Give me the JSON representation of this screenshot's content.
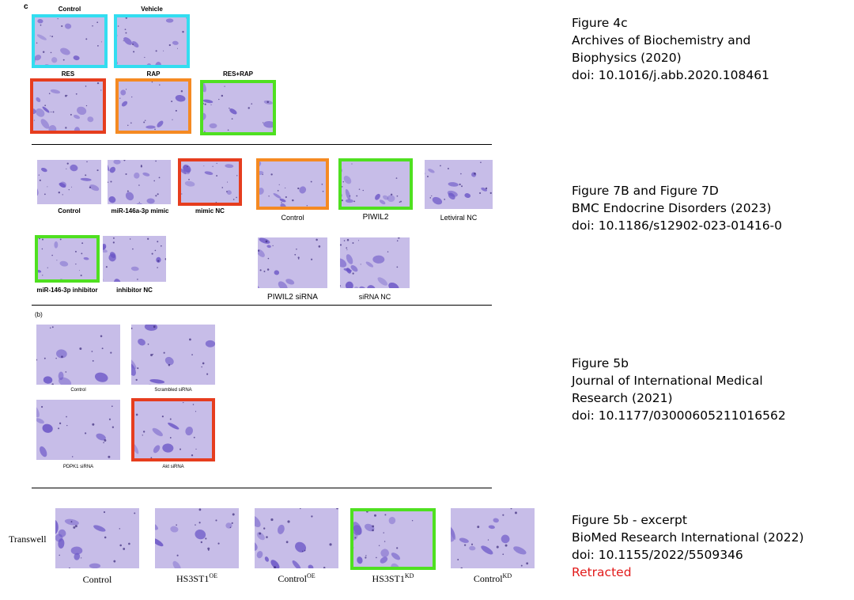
{
  "colors": {
    "cyan": "#33ddf0",
    "red": "#e63d1e",
    "orange": "#f58a22",
    "green": "#4fe020",
    "retracted": "#e21b1b",
    "cell_stain": "#6a55c6"
  },
  "section1": {
    "panel_letter": "c",
    "labels": {
      "control": "Control",
      "vehicle": "Vehicle",
      "res": "RES",
      "rap": "RAP",
      "res_rap": "RES+RAP"
    },
    "caption": {
      "line1": "Figure 4c",
      "line2": "Archives of Biochemistry and",
      "line3": "Biophysics (2020)",
      "line4": "doi: 10.1016/j.abb.2020.108461"
    }
  },
  "section2": {
    "labels": {
      "control": "Control",
      "mir_mimic": "miR-146a-3p mimic",
      "mimic_nc": "mimic NC",
      "control2": "Control",
      "piwil2": "PIWIL2",
      "letiviral_nc": "Letiviral NC",
      "mir_inhibitor": "miR-146-3p inhibitor",
      "inhibitor_nc": "inhibitor NC",
      "piwil2_sirna": "PIWIL2 siRNA",
      "sirna_nc": "siRNA NC"
    },
    "caption": {
      "line1": "Figure 7B and Figure 7D",
      "line2": "BMC Endocrine Disorders (2023)",
      "line3": "doi: 10.1186/s12902-023-01416-0"
    }
  },
  "section3": {
    "panel_letter": "(b)",
    "labels": {
      "control": "Control",
      "scrambled": "Scrambled siRNA",
      "pdpk1": "PDPK1 siRNA",
      "akt": "Akt siRNA"
    },
    "caption": {
      "line1": "Figure 5b",
      "line2": "Journal of International Medical",
      "line3": "Research (2021)",
      "line4": "doi: 10.1177/03000605211016562"
    }
  },
  "section4": {
    "row_label": "Transwell",
    "labels": {
      "control": "Control",
      "hs3st1_oe_base": "HS3ST1",
      "hs3st1_oe_sup": "OE",
      "control_oe_base": "Control",
      "control_oe_sup": "OE",
      "hs3st1_kd_base": "HS3ST1",
      "hs3st1_kd_sup": "KD",
      "control_kd_base": "Control",
      "control_kd_sup": "KD"
    },
    "caption": {
      "line1": "Figure 5b - excerpt",
      "line2": "BioMed Research International (2022)",
      "line3": "doi: 10.1155/2022/5509346",
      "status": "Retracted"
    }
  }
}
